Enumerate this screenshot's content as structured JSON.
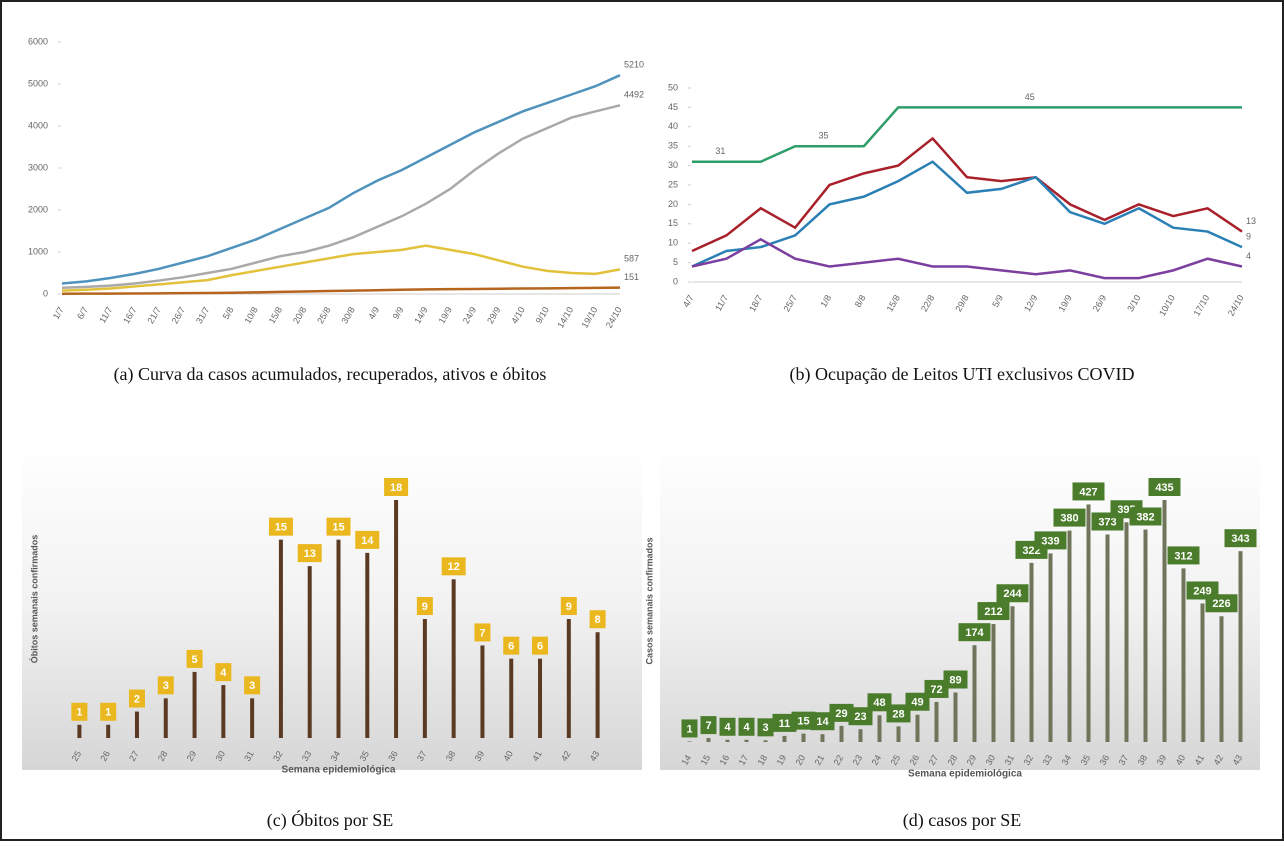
{
  "chart_data": [
    {
      "type": "line",
      "caption": "(a) Curva da casos acumulados, recuperados, ativos e óbitos",
      "categories": [
        "1/7",
        "6/7",
        "11/7",
        "16/7",
        "21/7",
        "26/7",
        "31/7",
        "5/8",
        "10/8",
        "15/8",
        "20/8",
        "25/8",
        "30/8",
        "4/9",
        "9/9",
        "14/9",
        "19/9",
        "24/9",
        "29/9",
        "4/10",
        "9/10",
        "14/10",
        "19/10",
        "24/10"
      ],
      "ylim": [
        0,
        6000
      ],
      "yticks": [
        0,
        1000,
        2000,
        3000,
        4000,
        5000,
        6000
      ],
      "grid": false,
      "series": [
        {
          "color": "#4f93bd",
          "values": [
            250,
            300,
            380,
            480,
            600,
            750,
            900,
            1100,
            1300,
            1550,
            1800,
            2050,
            2400,
            2700,
            2950,
            3250,
            3550,
            3850,
            4100,
            4350,
            4550,
            4750,
            4950,
            5210
          ]
        },
        {
          "color": "#a9a9a9",
          "values": [
            150,
            170,
            200,
            250,
            320,
            400,
            500,
            600,
            750,
            900,
            1000,
            1150,
            1350,
            1600,
            1850,
            2150,
            2500,
            2950,
            3350,
            3700,
            3950,
            4200,
            4350,
            4492
          ]
        },
        {
          "color": "#e2c23a",
          "values": [
            80,
            100,
            130,
            180,
            230,
            280,
            330,
            450,
            550,
            650,
            750,
            850,
            950,
            1000,
            1050,
            1150,
            1050,
            950,
            800,
            650,
            550,
            500,
            480,
            587
          ]
        },
        {
          "color": "#b5651d",
          "values": [
            5,
            8,
            10,
            12,
            15,
            20,
            25,
            30,
            40,
            50,
            60,
            70,
            80,
            90,
            100,
            110,
            115,
            120,
            125,
            130,
            135,
            140,
            145,
            151
          ]
        }
      ]
    },
    {
      "type": "line",
      "caption": "(b) Ocupação de Leitos UTI exclusivos COVID",
      "categories": [
        "4/7",
        "11/7",
        "18/7",
        "25/7",
        "1/8",
        "8/8",
        "15/8",
        "22/8",
        "29/8",
        "5/9",
        "12/9",
        "19/9",
        "26/9",
        "3/10",
        "10/10",
        "17/10",
        "24/10"
      ],
      "ylim": [
        0,
        50
      ],
      "yticks": [
        0,
        5,
        10,
        15,
        20,
        25,
        30,
        35,
        40,
        45,
        50
      ],
      "grid": false,
      "series": [
        {
          "color": "#2e9e6a",
          "values": [
            31,
            31,
            31,
            35,
            35,
            35,
            45,
            45,
            45,
            45,
            45,
            45,
            45,
            45,
            45,
            45,
            45
          ]
        },
        {
          "color": "#a8202a",
          "values": [
            8,
            12,
            19,
            14,
            25,
            28,
            30,
            37,
            27,
            26,
            27,
            20,
            16,
            20,
            17,
            19,
            13
          ]
        },
        {
          "color": "#2a7fb5",
          "values": [
            4,
            8,
            9,
            12,
            20,
            22,
            26,
            31,
            23,
            24,
            27,
            18,
            15,
            19,
            14,
            13,
            9
          ]
        },
        {
          "color": "#7b3fa0",
          "values": [
            4,
            6,
            11,
            6,
            4,
            5,
            6,
            4,
            4,
            3,
            2,
            3,
            1,
            1,
            3,
            6,
            4
          ]
        }
      ]
    },
    {
      "type": "bar",
      "caption": "(c) Óbitos por SE",
      "x_label": "Semana epidemiológica",
      "y_label": "Óbitos semanais confirmados",
      "color": "#5b3a24",
      "label_color": "#eab81e",
      "categories": [
        "25",
        "26",
        "27",
        "28",
        "29",
        "30",
        "31",
        "32",
        "33",
        "34",
        "35",
        "36",
        "37",
        "38",
        "39",
        "40",
        "41",
        "42",
        "43"
      ],
      "values": [
        1,
        1,
        2,
        3,
        5,
        4,
        3,
        15,
        13,
        15,
        14,
        18,
        9,
        12,
        7,
        6,
        6,
        9,
        8
      ]
    },
    {
      "type": "bar",
      "caption": "(d) casos por SE",
      "x_label": "Semana epidemiológica",
      "y_label": "Casos semanais confirmados",
      "color": "#6f745a",
      "label_color": "#4a7c2b",
      "categories": [
        "14",
        "15",
        "16",
        "17",
        "18",
        "19",
        "20",
        "21",
        "22",
        "23",
        "24",
        "25",
        "26",
        "27",
        "28",
        "29",
        "30",
        "31",
        "32",
        "33",
        "34",
        "35",
        "36",
        "37",
        "38",
        "39",
        "40",
        "41",
        "42",
        "43"
      ],
      "values": [
        1,
        7,
        4,
        4,
        3,
        11,
        15,
        14,
        29,
        23,
        48,
        28,
        49,
        72,
        89,
        174,
        212,
        244,
        322,
        339,
        380,
        427,
        373,
        395,
        382,
        435,
        312,
        249,
        226,
        343
      ]
    }
  ]
}
